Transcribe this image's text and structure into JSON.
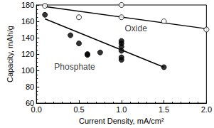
{
  "chart_data": {
    "type": "scatter",
    "x_label": "Current Density, mA/cm²",
    "y_label": "Capacity, mAh/g",
    "xlim": [
      0,
      2.0
    ],
    "xticks": [
      {
        "value": 0,
        "label": "0.0"
      },
      0.5,
      {
        "value": 1,
        "label": "1.0"
      },
      1.5,
      {
        "value": 2,
        "label": "2.0"
      }
    ],
    "ylim": [
      60,
      180
    ],
    "yticks": [
      60,
      80,
      100,
      120,
      140,
      160,
      180
    ],
    "grid": false,
    "series": [
      {
        "name": "Oxide",
        "color": "#000000",
        "marker": "open circle",
        "x": [
          0.1,
          0.5,
          1.0,
          1.0,
          1.5,
          2.0
        ],
        "values": [
          179,
          165,
          180,
          165,
          160,
          150
        ],
        "trend_x": [
          0.1,
          2.0
        ],
        "trend_values": [
          178,
          151
        ],
        "label_at": [
          1.17,
          151
        ]
      },
      {
        "name": "Phosphate",
        "color": "#000000",
        "marker": "filled circle",
        "x": [
          0.1,
          0.4,
          0.5,
          0.6,
          0.6,
          0.75,
          1.0,
          1.0,
          1.0,
          1.0,
          1.0,
          1.0,
          1.5
        ],
        "values": [
          168,
          143,
          133,
          120,
          119,
          122,
          136,
          133,
          129,
          124,
          116,
          113,
          104
        ],
        "trend_x": [
          0.1,
          1.5
        ],
        "trend_values": [
          163,
          104
        ],
        "label_at": [
          0.45,
          104
        ]
      }
    ]
  }
}
